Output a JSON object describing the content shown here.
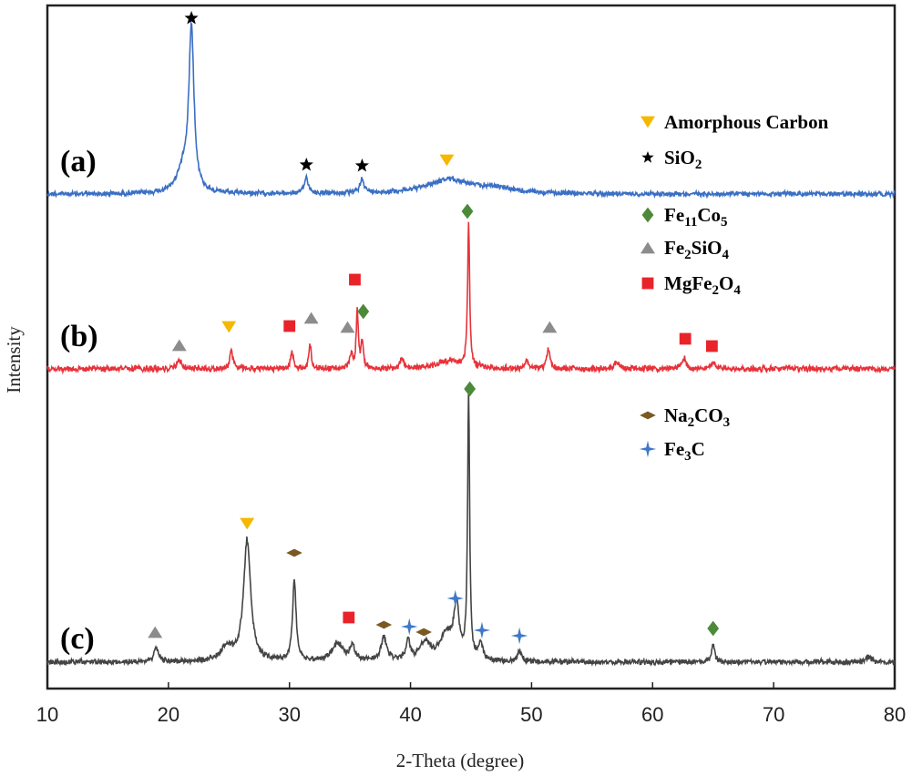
{
  "chart_data": {
    "type": "line",
    "title": "",
    "xlabel": "2-Theta (degree)",
    "ylabel": "Intensity",
    "xlim": [
      10,
      80
    ],
    "xticks": [
      10,
      20,
      30,
      40,
      50,
      60,
      70,
      80
    ],
    "yticks": false,
    "grid": false,
    "colors": {
      "a": "#3a6fc4",
      "b": "#e8323a",
      "c": "#444444",
      "amorphous": "#f5b800",
      "sio2": "#000000",
      "fe11co5": "#4c8a3a",
      "fe2sio4": "#8c8c8c",
      "mgfe2o4": "#e8242a",
      "na2co3": "#7a5a22",
      "fe3c": "#3f78c8"
    },
    "series": [
      {
        "name": "(a)",
        "label": "(a)",
        "color": "#3a6fc4",
        "baseline": 0,
        "peaks": [
          [
            21.9,
            102,
            0.25
          ],
          [
            21.2,
            14,
            0.6
          ],
          [
            31.4,
            10,
            0.2
          ],
          [
            36.0,
            9,
            0.2
          ],
          [
            43.2,
            9,
            2.2
          ],
          [
            47.0,
            3,
            1.5
          ]
        ],
        "markers": [
          {
            "phase": "SiO2",
            "x": 21.9
          },
          {
            "phase": "SiO2",
            "x": 31.4
          },
          {
            "phase": "SiO2",
            "x": 36.0
          },
          {
            "phase": "Amorphous Carbon",
            "x": 43.0
          }
        ]
      },
      {
        "name": "(b)",
        "label": "(b)",
        "color": "#e8323a",
        "baseline": 0,
        "peaks": [
          [
            20.9,
            6,
            0.2
          ],
          [
            25.2,
            12,
            0.15
          ],
          [
            30.2,
            12,
            0.12
          ],
          [
            31.7,
            16,
            0.12
          ],
          [
            35.1,
            9,
            0.15
          ],
          [
            35.6,
            37,
            0.1
          ],
          [
            36.0,
            17,
            0.12
          ],
          [
            39.3,
            7,
            0.15
          ],
          [
            43.2,
            5,
            1.2
          ],
          [
            44.8,
            93,
            0.1
          ],
          [
            49.6,
            5,
            0.15
          ],
          [
            51.4,
            13,
            0.15
          ],
          [
            57.0,
            4,
            0.3
          ],
          [
            62.6,
            7,
            0.2
          ],
          [
            65.0,
            4,
            0.2
          ]
        ],
        "markers": [
          {
            "phase": "Fe2SiO4",
            "x": 20.9
          },
          {
            "phase": "Amorphous Carbon",
            "x": 25.0
          },
          {
            "phase": "MgFe2O4",
            "x": 30.0
          },
          {
            "phase": "Fe2SiO4",
            "x": 31.8
          },
          {
            "phase": "Fe2SiO4",
            "x": 34.8
          },
          {
            "phase": "MgFe2O4",
            "x": 35.4
          },
          {
            "phase": "Fe11Co5",
            "x": 36.1
          },
          {
            "phase": "Fe11Co5",
            "x": 44.7
          },
          {
            "phase": "Fe2SiO4",
            "x": 51.5
          },
          {
            "phase": "MgFe2O4",
            "x": 62.7
          },
          {
            "phase": "MgFe2O4",
            "x": 64.9
          }
        ]
      },
      {
        "name": "(c)",
        "label": "(c)",
        "color": "#444444",
        "baseline": 0,
        "peaks": [
          [
            19.0,
            8,
            0.25
          ],
          [
            24.8,
            8,
            0.6
          ],
          [
            26.5,
            68,
            0.35
          ],
          [
            30.4,
            45,
            0.18
          ],
          [
            34.0,
            10,
            0.6
          ],
          [
            35.2,
            9,
            0.2
          ],
          [
            37.8,
            13,
            0.3
          ],
          [
            39.8,
            11,
            0.2
          ],
          [
            41.2,
            10,
            0.5
          ],
          [
            43.0,
            15,
            0.7
          ],
          [
            43.8,
            28,
            0.25
          ],
          [
            44.8,
            148,
            0.1
          ],
          [
            45.8,
            9,
            0.2
          ],
          [
            49.0,
            6,
            0.2
          ],
          [
            65.0,
            11,
            0.15
          ],
          [
            77.8,
            3,
            0.3
          ]
        ],
        "markers": [
          {
            "phase": "Fe2SiO4",
            "x": 18.9
          },
          {
            "phase": "Amorphous Carbon",
            "x": 26.5
          },
          {
            "phase": "Na2CO3",
            "x": 30.4
          },
          {
            "phase": "MgFe2O4",
            "x": 34.9
          },
          {
            "phase": "Na2CO3",
            "x": 37.8
          },
          {
            "phase": "Fe3C",
            "x": 39.9
          },
          {
            "phase": "Na2CO3",
            "x": 41.1
          },
          {
            "phase": "Fe3C",
            "x": 43.7
          },
          {
            "phase": "Fe11Co5",
            "x": 44.9
          },
          {
            "phase": "Fe3C",
            "x": 45.9
          },
          {
            "phase": "Fe3C",
            "x": 49.0
          },
          {
            "phase": "Fe11Co5",
            "x": 65.0
          }
        ]
      }
    ],
    "legend": [
      {
        "phase": "Amorphous Carbon",
        "symbol": "triangle-down",
        "color": "#f5b800",
        "text": "Amorphous Carbon",
        "parts": [
          {
            "t": "Amorphous Carbon",
            "sub": false
          }
        ]
      },
      {
        "phase": "SiO2",
        "symbol": "star",
        "color": "#000000",
        "text": "SiO2",
        "parts": [
          {
            "t": "SiO",
            "sub": false
          },
          {
            "t": "2",
            "sub": true
          }
        ]
      },
      {
        "phase": "Fe11Co5",
        "symbol": "diamond",
        "color": "#4c8a3a",
        "text": "Fe11Co5",
        "parts": [
          {
            "t": "Fe",
            "sub": false
          },
          {
            "t": "11",
            "sub": true
          },
          {
            "t": "Co",
            "sub": false
          },
          {
            "t": "5",
            "sub": true
          }
        ]
      },
      {
        "phase": "Fe2SiO4",
        "symbol": "triangle-up",
        "color": "#8c8c8c",
        "text": "Fe2SiO4",
        "parts": [
          {
            "t": "Fe",
            "sub": false
          },
          {
            "t": "2",
            "sub": true
          },
          {
            "t": "SiO",
            "sub": false
          },
          {
            "t": "4",
            "sub": true
          }
        ]
      },
      {
        "phase": "MgFe2O4",
        "symbol": "square",
        "color": "#e8242a",
        "text": "MgFe2O4",
        "parts": [
          {
            "t": "MgFe",
            "sub": false
          },
          {
            "t": "2",
            "sub": true
          },
          {
            "t": "O",
            "sub": false
          },
          {
            "t": "4",
            "sub": true
          }
        ]
      },
      {
        "phase": "Na2CO3",
        "symbol": "flat-diamond",
        "color": "#7a5a22",
        "text": "Na2CO3",
        "parts": [
          {
            "t": "Na",
            "sub": false
          },
          {
            "t": "2",
            "sub": true
          },
          {
            "t": "CO",
            "sub": false
          },
          {
            "t": "3",
            "sub": true
          }
        ]
      },
      {
        "phase": "Fe3C",
        "symbol": "sparkle",
        "color": "#3f78c8",
        "text": "Fe3C",
        "parts": [
          {
            "t": "Fe",
            "sub": false
          },
          {
            "t": "3",
            "sub": true
          },
          {
            "t": "C",
            "sub": false
          }
        ]
      }
    ]
  }
}
